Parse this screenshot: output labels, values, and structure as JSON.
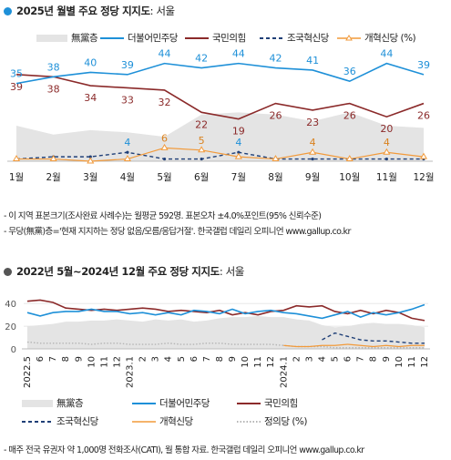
{
  "colors": {
    "dem": "#1e90d8",
    "ppp": "#8b2a2a",
    "rebuild": "#1f3f77",
    "reform": "#f29a3a",
    "none": "#e4e4e4",
    "justice": "#b5b5b5",
    "dot1": "#1e90d8",
    "dot2": "#555555"
  },
  "chart1": {
    "title": "2025년 월별 주요 정당 지지도",
    "region": ": 서울",
    "legend": [
      "無黨층",
      "더불어민주당",
      "국민의힘",
      "조국혁신당",
      "개혁신당 (%)"
    ],
    "notes": [
      "- 이 지역 표본크기(조사완료 사례수)는 월평균 592명. 표본오차 ±4.0%포인트(95% 신뢰수준)",
      "- 무당(無黨)층='현재 지지하는 정당 없음/모름/응답거절'. 한국갤럽 데일리 오피니언 www.gallup.co.kr"
    ]
  },
  "chart2": {
    "title": "2022년 5월~2024년 12월 주요 정당 지지도",
    "region": ": 서울",
    "legend": [
      "無黨층",
      "더불어민주당",
      "국민의힘",
      "조국혁신당",
      "개혁신당",
      "정의당 (%)"
    ],
    "note": "- 매주 전국 유권자 약 1,000명 전화조사(CATI), 월 통합 자료. 한국갤럽 데일리 오피니언 www.gallup.co.kr"
  },
  "chart_data": [
    {
      "type": "line",
      "categories": [
        "1월",
        "2월",
        "3월",
        "4월",
        "5월",
        "6월",
        "7월",
        "8월",
        "9월",
        "10월",
        "11월",
        "12월"
      ],
      "ylim": [
        0,
        50
      ],
      "series": [
        {
          "name": "더불어민주당",
          "values": [
            35,
            38,
            40,
            39,
            44,
            42,
            44,
            42,
            41,
            36,
            44,
            39
          ],
          "labels": [
            35,
            38,
            40,
            39,
            44,
            42,
            44,
            42,
            41,
            36,
            44,
            39
          ]
        },
        {
          "name": "국민의힘",
          "values": [
            39,
            38,
            34,
            33,
            32,
            22,
            19,
            26,
            23,
            26,
            20,
            26
          ],
          "labels": [
            39,
            38,
            34,
            33,
            32,
            22,
            19,
            26,
            23,
            26,
            20,
            26
          ]
        },
        {
          "name": "조국혁신당",
          "values": [
            1,
            2,
            2,
            4,
            1,
            1,
            4,
            1,
            1,
            1,
            1,
            1
          ],
          "labels": [
            null,
            null,
            null,
            4,
            null,
            null,
            4,
            null,
            null,
            null,
            null,
            null
          ]
        },
        {
          "name": "개혁신당",
          "values": [
            1,
            1,
            0,
            1,
            6,
            5,
            2,
            1,
            4,
            1,
            4,
            2
          ],
          "labels": [
            null,
            null,
            null,
            null,
            6,
            5,
            null,
            null,
            4,
            null,
            4,
            null
          ]
        },
        {
          "name": "無黨층",
          "values": [
            16,
            12,
            14,
            13,
            11,
            21,
            22,
            21,
            18,
            22,
            16,
            15
          ]
        }
      ]
    },
    {
      "type": "line",
      "ylim": [
        0,
        45
      ],
      "yticks": [
        0,
        20,
        40
      ],
      "x_labels": [
        "2022.5",
        "6",
        "7",
        "8",
        "9",
        "10",
        "11",
        "12",
        "2023.1",
        "2",
        "3",
        "4",
        "5",
        "6",
        "7",
        "8",
        "9",
        "10",
        "11",
        "12",
        "2024.1",
        "2",
        "3",
        "4",
        "5",
        "6",
        "7",
        "8",
        "9",
        "10",
        "11",
        "12"
      ],
      "series": [
        {
          "name": "더불어민주당",
          "values": [
            32,
            29,
            32,
            33,
            33,
            35,
            33,
            33,
            31,
            32,
            30,
            32,
            30,
            34,
            33,
            31,
            35,
            31,
            33,
            34,
            32,
            31,
            29,
            27,
            30,
            33,
            28,
            32,
            30,
            32,
            35,
            39
          ]
        },
        {
          "name": "국민의힘",
          "values": [
            42,
            43,
            41,
            36,
            35,
            34,
            35,
            34,
            35,
            36,
            35,
            33,
            34,
            33,
            32,
            34,
            30,
            32,
            30,
            33,
            34,
            38,
            37,
            38,
            33,
            31,
            34,
            31,
            34,
            32,
            27,
            25
          ]
        },
        {
          "name": "조국혁신당",
          "values": [
            null,
            null,
            null,
            null,
            null,
            null,
            null,
            null,
            null,
            null,
            null,
            null,
            null,
            null,
            null,
            null,
            null,
            null,
            null,
            null,
            null,
            null,
            null,
            8,
            14,
            11,
            8,
            7,
            7,
            6,
            5,
            5
          ]
        },
        {
          "name": "개혁신당",
          "values": [
            null,
            null,
            null,
            null,
            null,
            null,
            null,
            null,
            null,
            null,
            null,
            null,
            null,
            null,
            null,
            null,
            null,
            null,
            null,
            null,
            3,
            2,
            2,
            3,
            3,
            4,
            3,
            2,
            3,
            2,
            3,
            3
          ]
        },
        {
          "name": "정의당",
          "values": [
            6,
            5,
            5,
            5,
            5,
            4,
            5,
            5,
            4,
            4,
            4,
            5,
            4,
            4,
            5,
            5,
            4,
            4,
            4,
            4,
            3,
            2,
            2,
            2,
            1,
            1,
            1,
            1,
            1,
            1,
            1,
            1
          ]
        },
        {
          "name": "無黨층",
          "values": [
            20,
            21,
            22,
            24,
            24,
            25,
            25,
            26,
            25,
            24,
            26,
            25,
            26,
            24,
            25,
            27,
            28,
            28,
            29,
            28,
            28,
            26,
            25,
            21,
            19,
            20,
            22,
            23,
            22,
            22,
            21,
            19
          ]
        }
      ]
    }
  ]
}
